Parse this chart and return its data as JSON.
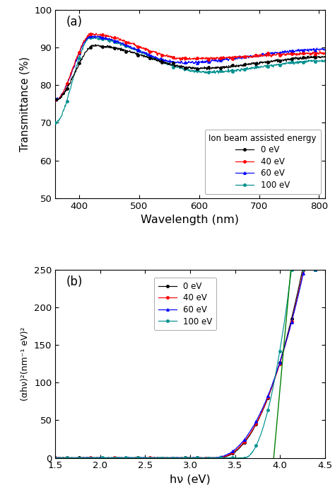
{
  "panel_a": {
    "title": "(a)",
    "xlabel": "Wavelength (nm)",
    "ylabel": "Transmittance (%)",
    "xlim": [
      360,
      810
    ],
    "ylim": [
      50,
      100
    ],
    "yticks": [
      50,
      60,
      70,
      80,
      90,
      100
    ],
    "xticks": [
      400,
      500,
      600,
      700,
      800
    ],
    "legend_title": "Ion beam assisted energy",
    "legend_labels": [
      "0 eV",
      "40 eV",
      "60 eV",
      "100 eV"
    ],
    "colors": [
      "#000000",
      "#ff0000",
      "#0000ff",
      "#009090"
    ]
  },
  "panel_b": {
    "title": "(b)",
    "xlabel": "hν (eV)",
    "ylabel": "(αhν)²(nm⁻¹ eV)²",
    "xlim": [
      1.5,
      4.5
    ],
    "ylim": [
      0,
      250
    ],
    "yticks": [
      0,
      50,
      100,
      150,
      200,
      250
    ],
    "xticks": [
      1.5,
      2.0,
      2.5,
      3.0,
      3.5,
      4.0,
      4.5
    ],
    "legend_labels": [
      "0 eV",
      "40 eV",
      "60 eV",
      "100 eV"
    ],
    "colors": [
      "#000000",
      "#ff0000",
      "#0000ff",
      "#009090"
    ],
    "green_line_color": "#008000"
  }
}
